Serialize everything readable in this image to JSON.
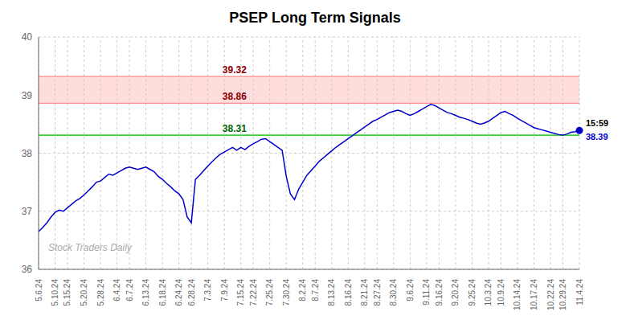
{
  "chart_data": {
    "type": "line",
    "title": "PSEP Long Term Signals",
    "categories": [
      "5.6.24",
      null,
      null,
      null,
      "5.10.24",
      null,
      null,
      "5.15.24",
      null,
      null,
      null,
      "5.20.24",
      null,
      null,
      null,
      "5.28.24",
      null,
      null,
      null,
      "6.4.24",
      null,
      null,
      "6.7.24",
      null,
      null,
      null,
      "6.13.24",
      null,
      null,
      null,
      "6.18.24",
      null,
      null,
      null,
      "6.24.24",
      null,
      null,
      "6.28.24",
      null,
      null,
      null,
      "7.3.24",
      null,
      null,
      null,
      "7.9.24",
      null,
      null,
      null,
      "7.15.24",
      null,
      null,
      "7.22.24",
      null,
      null,
      null,
      "7.25.24",
      null,
      null,
      null,
      "7.30.24",
      null,
      null,
      null,
      "8.2.24",
      null,
      null,
      "8.7.24",
      null,
      null,
      null,
      "8.13.24",
      null,
      null,
      null,
      "8.16.24",
      null,
      null,
      null,
      "8.21.24",
      null,
      null,
      "8.27.24",
      null,
      null,
      null,
      "8.30.24",
      null,
      null,
      null,
      "9.6.24",
      null,
      null,
      null,
      "9.11.24",
      null,
      null,
      "9.16.24",
      null,
      null,
      null,
      "9.20.24",
      null,
      null,
      null,
      "9.25.24",
      null,
      null,
      null,
      "10.3.24",
      null,
      null,
      "10.9.24",
      null,
      null,
      null,
      "10.14.24",
      null,
      null,
      null,
      "10.17.24",
      null,
      null,
      null,
      "10.22.24",
      null,
      null,
      "10.29.24",
      null,
      null,
      null,
      "11.4.24"
    ],
    "values": [
      36.65,
      36.72,
      36.8,
      36.9,
      36.98,
      37.02,
      37.0,
      37.06,
      37.12,
      37.18,
      37.22,
      37.28,
      37.35,
      37.42,
      37.5,
      37.52,
      37.58,
      37.64,
      37.62,
      37.66,
      37.7,
      37.74,
      37.76,
      37.74,
      37.72,
      37.74,
      37.76,
      37.72,
      37.68,
      37.6,
      37.55,
      37.48,
      37.42,
      37.35,
      37.3,
      37.2,
      36.9,
      36.8,
      37.55,
      37.62,
      37.7,
      37.78,
      37.85,
      37.92,
      37.98,
      38.02,
      38.06,
      38.1,
      38.05,
      38.1,
      38.06,
      38.12,
      38.16,
      38.2,
      38.24,
      38.25,
      38.2,
      38.15,
      38.1,
      38.05,
      37.6,
      37.3,
      37.2,
      37.38,
      37.5,
      37.62,
      37.7,
      37.78,
      37.86,
      37.92,
      37.98,
      38.04,
      38.1,
      38.15,
      38.2,
      38.25,
      38.3,
      38.35,
      38.4,
      38.45,
      38.5,
      38.55,
      38.58,
      38.62,
      38.66,
      38.7,
      38.72,
      38.74,
      38.72,
      38.68,
      38.65,
      38.68,
      38.72,
      38.76,
      38.8,
      38.84,
      38.82,
      38.78,
      38.74,
      38.7,
      38.68,
      38.65,
      38.62,
      38.6,
      38.58,
      38.55,
      38.52,
      38.5,
      38.52,
      38.55,
      38.6,
      38.65,
      38.7,
      38.72,
      38.68,
      38.65,
      38.6,
      38.56,
      38.52,
      38.48,
      38.44,
      38.42,
      38.4,
      38.38,
      38.36,
      38.34,
      38.32,
      38.31,
      38.33,
      38.36,
      38.37,
      38.39
    ],
    "color": "#0000cc",
    "ylim": [
      36,
      40
    ],
    "yticks": [
      36,
      37,
      38,
      39,
      40
    ],
    "grid": true,
    "bands": [
      {
        "from": 38.86,
        "to": 39.32,
        "color": "#ffdddd"
      },
      {
        "from": 38.295,
        "to": 38.325,
        "color": "#ddffdd"
      }
    ],
    "reference_lines": [
      {
        "value": 39.32,
        "label": "39.32",
        "color": "#ff8888",
        "label_color": "#8b0000"
      },
      {
        "value": 38.86,
        "label": "38.86",
        "color": "#ff8888",
        "label_color": "#8b0000"
      },
      {
        "value": 38.31,
        "label": "38.31",
        "color": "#00bb00",
        "label_color": "#006400"
      }
    ],
    "last_point": {
      "time": "15:59",
      "value": 38.39,
      "label": "38.39",
      "color": "#0000cc"
    },
    "watermark": "Stock Traders Daily"
  }
}
